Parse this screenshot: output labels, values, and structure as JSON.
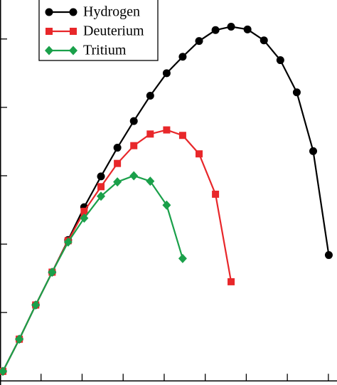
{
  "chart_data": {
    "type": "line",
    "x": [
      0.07,
      0.47,
      0.87,
      1.27,
      1.66,
      2.05,
      2.46,
      2.86,
      3.26,
      3.66,
      4.06,
      4.45,
      4.85,
      5.25,
      5.63,
      6.03,
      6.43,
      6.83,
      7.23,
      7.63,
      8.01
    ],
    "series": [
      {
        "name": "Hydrogen",
        "color": "#000000",
        "marker": "circle",
        "values": [
          0.14,
          0.61,
          1.11,
          1.59,
          2.06,
          2.54,
          2.99,
          3.41,
          3.8,
          4.17,
          4.5,
          4.74,
          4.97,
          5.13,
          5.18,
          5.14,
          4.98,
          4.69,
          4.22,
          3.36,
          1.84
        ]
      },
      {
        "name": "Deuterium",
        "color": "#e8272a",
        "marker": "square",
        "values": [
          0.14,
          0.61,
          1.11,
          1.59,
          2.05,
          2.48,
          2.84,
          3.18,
          3.44,
          3.61,
          3.67,
          3.59,
          3.32,
          2.73,
          1.45,
          null,
          null,
          null,
          null,
          null,
          null
        ]
      },
      {
        "name": "Tritium",
        "color": "#1aa04a",
        "marker": "diamond",
        "values": [
          0.14,
          0.61,
          1.11,
          1.59,
          2.03,
          2.38,
          2.7,
          2.91,
          3.0,
          2.92,
          2.57,
          1.79,
          null,
          null,
          null,
          null,
          null,
          null,
          null,
          null,
          null
        ]
      }
    ],
    "xlim": [
      0,
      8.21
    ],
    "ylim": [
      -0.06,
      5.57
    ],
    "xticks": [
      1,
      2,
      3,
      4,
      5,
      6,
      7,
      8
    ],
    "yticks": [
      0,
      1,
      2,
      3,
      4,
      5
    ],
    "legend": "upper-left"
  }
}
